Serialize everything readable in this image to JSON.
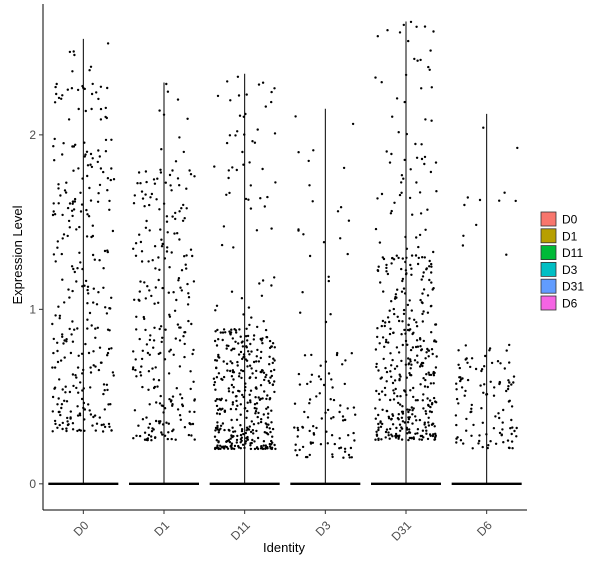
{
  "chart_data": {
    "type": "scatter",
    "subtype": "violin-jitter (violin widths ~0)",
    "title": "",
    "xlabel": "Identity",
    "ylabel": "Expression Level",
    "ylim": [
      -0.15,
      2.75
    ],
    "yticks": [
      0,
      1,
      2
    ],
    "categories": [
      "D0",
      "D1",
      "D11",
      "D3",
      "D31",
      "D6"
    ],
    "legend": {
      "position": "right",
      "entries": [
        {
          "name": "D0",
          "color": "#F8766D"
        },
        {
          "name": "D1",
          "color": "#B79F00"
        },
        {
          "name": "D11",
          "color": "#00BA38"
        },
        {
          "name": "D3",
          "color": "#00BFC4"
        },
        {
          "name": "D31",
          "color": "#619CFF"
        },
        {
          "name": "D6",
          "color": "#F564E3"
        }
      ]
    },
    "series": [
      {
        "category": "D0",
        "max": 2.55,
        "zero_fraction": "majority",
        "nonzero_count_approx": 300,
        "nonzero_dense_range": [
          0.3,
          2.3
        ]
      },
      {
        "category": "D1",
        "max": 2.3,
        "zero_fraction": "majority",
        "nonzero_count_approx": 260,
        "nonzero_dense_range": [
          0.25,
          1.8
        ]
      },
      {
        "category": "D11",
        "max": 2.35,
        "zero_fraction": "majority",
        "nonzero_count_approx": 420,
        "nonzero_dense_range": [
          0.2,
          0.9
        ]
      },
      {
        "category": "D3",
        "max": 2.15,
        "zero_fraction": "majority",
        "nonzero_count_approx": 110,
        "nonzero_dense_range": [
          0.15,
          0.8
        ]
      },
      {
        "category": "D31",
        "max": 2.65,
        "zero_fraction": "majority",
        "nonzero_count_approx": 430,
        "nonzero_dense_range": [
          0.25,
          1.3
        ]
      },
      {
        "category": "D6",
        "max": 2.12,
        "zero_fraction": "majority",
        "nonzero_count_approx": 120,
        "nonzero_dense_range": [
          0.2,
          0.8
        ]
      }
    ],
    "point_color": "#000000",
    "grid": false,
    "x_tick_rotation": 45
  }
}
